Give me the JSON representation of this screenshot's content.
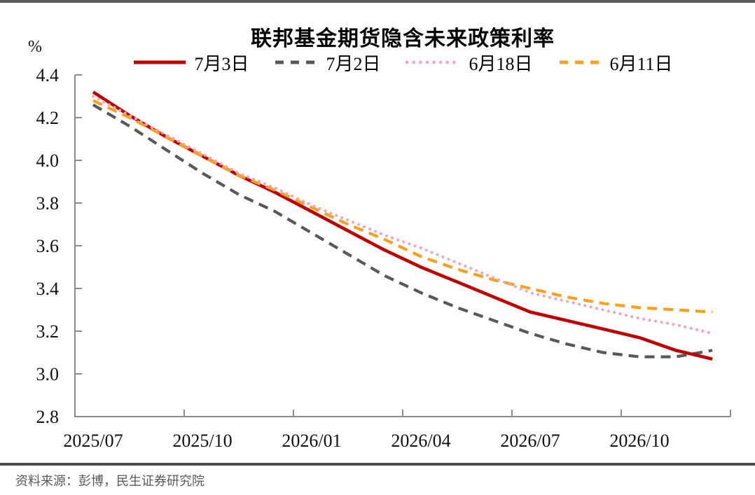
{
  "chart_data": {
    "type": "line",
    "title": "联邦基金期货隐含未来政策利率",
    "unit_label": "%",
    "grid": false,
    "legend_position": "top",
    "ylim": [
      2.8,
      4.4
    ],
    "ytick_step": 0.2,
    "x_axis_labels": [
      "2025/07",
      "2025/10",
      "2026/01",
      "2026/04",
      "2026/07",
      "2026/10"
    ],
    "x_categories": [
      "2025/07",
      "2025/08",
      "2025/09",
      "2025/10",
      "2025/11",
      "2025/12",
      "2026/01",
      "2026/02",
      "2026/03",
      "2026/04",
      "2026/05",
      "2026/06",
      "2026/07",
      "2026/08",
      "2026/09",
      "2026/10",
      "2026/11",
      "2026/12"
    ],
    "series": [
      {
        "name": "7月3日",
        "color": "#C00000",
        "style": "solid",
        "values": [
          4.32,
          4.21,
          4.11,
          4.02,
          3.93,
          3.85,
          3.76,
          3.67,
          3.58,
          3.5,
          3.43,
          3.36,
          3.29,
          3.25,
          3.21,
          3.17,
          3.11,
          3.07
        ]
      },
      {
        "name": "7月2日",
        "color": "#595959",
        "style": "dashed",
        "values": [
          4.26,
          4.16,
          4.05,
          3.94,
          3.84,
          3.76,
          3.66,
          3.56,
          3.46,
          3.38,
          3.31,
          3.25,
          3.19,
          3.14,
          3.1,
          3.08,
          3.08,
          3.11
        ]
      },
      {
        "name": "6月18日",
        "color": "#F3A6BA",
        "style": "dotted",
        "values": [
          4.3,
          4.21,
          4.12,
          4.03,
          3.94,
          3.87,
          3.79,
          3.72,
          3.65,
          3.59,
          3.52,
          3.45,
          3.38,
          3.34,
          3.3,
          3.26,
          3.23,
          3.19
        ]
      },
      {
        "name": "6月11日",
        "color": "#F9A11B",
        "style": "dashed",
        "values": [
          4.28,
          4.2,
          4.11,
          4.02,
          3.93,
          3.86,
          3.78,
          3.7,
          3.63,
          3.55,
          3.49,
          3.44,
          3.4,
          3.36,
          3.33,
          3.31,
          3.3,
          3.29
        ]
      }
    ]
  },
  "axis_colors": {
    "line": "#8c8c8c",
    "label": "#111111"
  },
  "footer": {
    "source": "资料来源：彭博，民生证券研究院"
  }
}
